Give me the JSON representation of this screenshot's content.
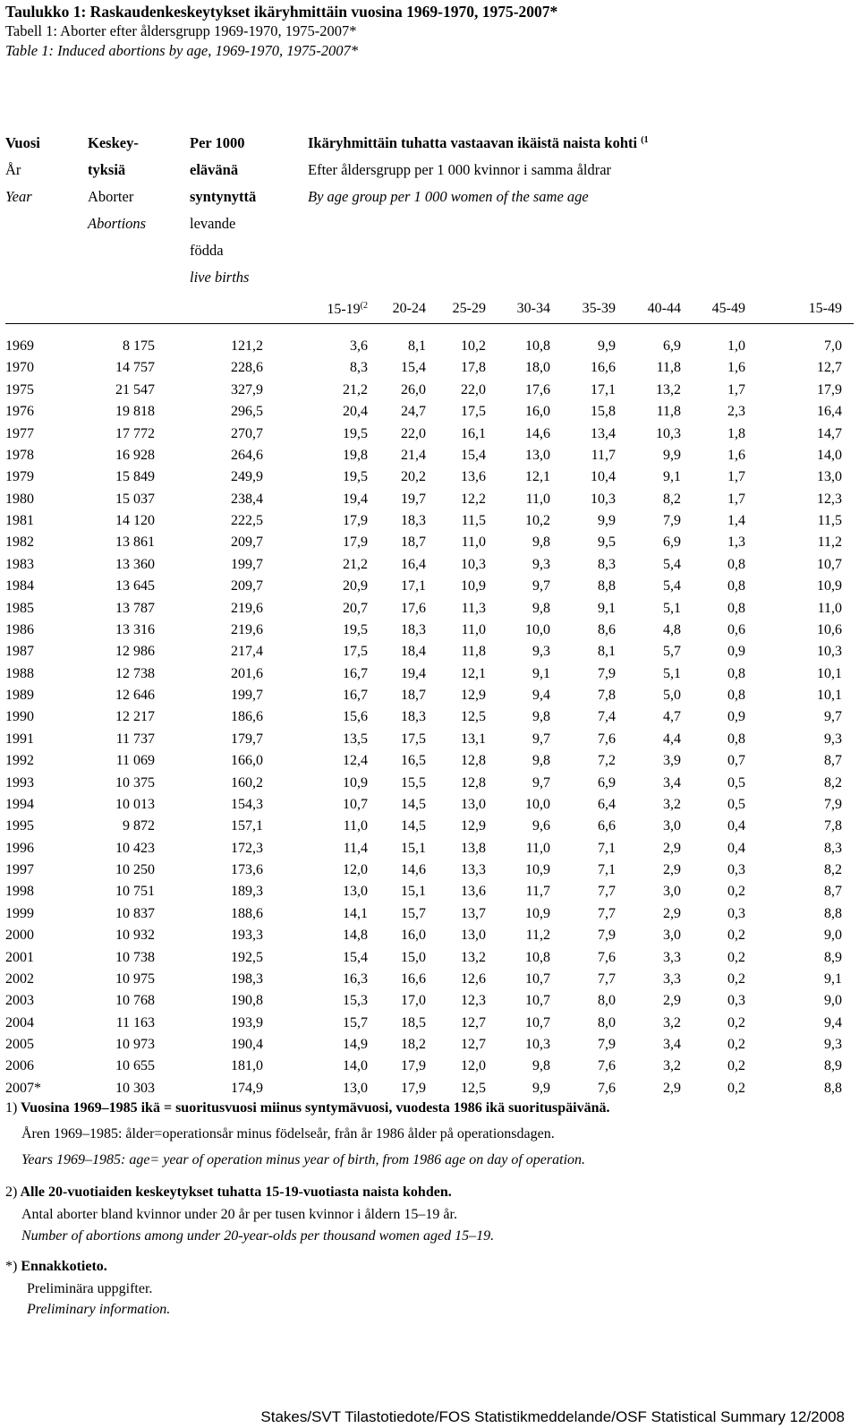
{
  "title": {
    "fi": "Taulukko 1: Raskaudenkeskeytykset ikäryhmittäin vuosina 1969-1970, 1975-2007*",
    "sv": "Tabell 1: Aborter efter åldersgrupp 1969-1970, 1975-2007*",
    "en": "Table 1: Induced abortions by age, 1969-1970, 1975-2007*"
  },
  "headers": {
    "year": {
      "fi": "Vuosi",
      "sv": "År",
      "en": "Year"
    },
    "abortions": {
      "fi": "Keskey-",
      "fi2": "tyksiä",
      "sv": "Aborter",
      "en": "Abortions"
    },
    "per1000": {
      "fi": "Per 1000",
      "fi2": "elävänä",
      "fi3": "syntynyttä",
      "sv": "levande",
      "sv2": "födda",
      "en": "live births"
    },
    "agegroups": {
      "fi": "Ikäryhmittäin tuhatta vastaavan ikäistä naista kohti",
      "fi_note": "(1",
      "sv": "Efter åldersgrupp per 1 000 kvinnor i samma åldrar",
      "en": "By age group per 1 000 women of the same age"
    },
    "ages": [
      "15-19",
      "20-24",
      "25-29",
      "30-34",
      "35-39",
      "40-44",
      "45-49",
      "15-49"
    ],
    "age_first_note": "(2"
  },
  "rows": [
    [
      "1969",
      "8 175",
      "121,2",
      "3,6",
      "8,1",
      "10,2",
      "10,8",
      "9,9",
      "6,9",
      "1,0",
      "7,0"
    ],
    [
      "1970",
      "14 757",
      "228,6",
      "8,3",
      "15,4",
      "17,8",
      "18,0",
      "16,6",
      "11,8",
      "1,6",
      "12,7"
    ],
    [
      "1975",
      "21 547",
      "327,9",
      "21,2",
      "26,0",
      "22,0",
      "17,6",
      "17,1",
      "13,2",
      "1,7",
      "17,9"
    ],
    [
      "1976",
      "19 818",
      "296,5",
      "20,4",
      "24,7",
      "17,5",
      "16,0",
      "15,8",
      "11,8",
      "2,3",
      "16,4"
    ],
    [
      "1977",
      "17 772",
      "270,7",
      "19,5",
      "22,0",
      "16,1",
      "14,6",
      "13,4",
      "10,3",
      "1,8",
      "14,7"
    ],
    [
      "1978",
      "16 928",
      "264,6",
      "19,8",
      "21,4",
      "15,4",
      "13,0",
      "11,7",
      "9,9",
      "1,6",
      "14,0"
    ],
    [
      "1979",
      "15 849",
      "249,9",
      "19,5",
      "20,2",
      "13,6",
      "12,1",
      "10,4",
      "9,1",
      "1,7",
      "13,0"
    ],
    [
      "1980",
      "15 037",
      "238,4",
      "19,4",
      "19,7",
      "12,2",
      "11,0",
      "10,3",
      "8,2",
      "1,7",
      "12,3"
    ],
    [
      "1981",
      "14 120",
      "222,5",
      "17,9",
      "18,3",
      "11,5",
      "10,2",
      "9,9",
      "7,9",
      "1,4",
      "11,5"
    ],
    [
      "1982",
      "13 861",
      "209,7",
      "17,9",
      "18,7",
      "11,0",
      "9,8",
      "9,5",
      "6,9",
      "1,3",
      "11,2"
    ],
    [
      "1983",
      "13 360",
      "199,7",
      "21,2",
      "16,4",
      "10,3",
      "9,3",
      "8,3",
      "5,4",
      "0,8",
      "10,7"
    ],
    [
      "1984",
      "13 645",
      "209,7",
      "20,9",
      "17,1",
      "10,9",
      "9,7",
      "8,8",
      "5,4",
      "0,8",
      "10,9"
    ],
    [
      "1985",
      "13 787",
      "219,6",
      "20,7",
      "17,6",
      "11,3",
      "9,8",
      "9,1",
      "5,1",
      "0,8",
      "11,0"
    ],
    [
      "1986",
      "13 316",
      "219,6",
      "19,5",
      "18,3",
      "11,0",
      "10,0",
      "8,6",
      "4,8",
      "0,6",
      "10,6"
    ],
    [
      "1987",
      "12 986",
      "217,4",
      "17,5",
      "18,4",
      "11,8",
      "9,3",
      "8,1",
      "5,7",
      "0,9",
      "10,3"
    ],
    [
      "1988",
      "12 738",
      "201,6",
      "16,7",
      "19,4",
      "12,1",
      "9,1",
      "7,9",
      "5,1",
      "0,8",
      "10,1"
    ],
    [
      "1989",
      "12 646",
      "199,7",
      "16,7",
      "18,7",
      "12,9",
      "9,4",
      "7,8",
      "5,0",
      "0,8",
      "10,1"
    ],
    [
      "1990",
      "12 217",
      "186,6",
      "15,6",
      "18,3",
      "12,5",
      "9,8",
      "7,4",
      "4,7",
      "0,9",
      "9,7"
    ],
    [
      "1991",
      "11 737",
      "179,7",
      "13,5",
      "17,5",
      "13,1",
      "9,7",
      "7,6",
      "4,4",
      "0,8",
      "9,3"
    ],
    [
      "1992",
      "11 069",
      "166,0",
      "12,4",
      "16,5",
      "12,8",
      "9,8",
      "7,2",
      "3,9",
      "0,7",
      "8,7"
    ],
    [
      "1993",
      "10 375",
      "160,2",
      "10,9",
      "15,5",
      "12,8",
      "9,7",
      "6,9",
      "3,4",
      "0,5",
      "8,2"
    ],
    [
      "1994",
      "10 013",
      "154,3",
      "10,7",
      "14,5",
      "13,0",
      "10,0",
      "6,4",
      "3,2",
      "0,5",
      "7,9"
    ],
    [
      "1995",
      "9 872",
      "157,1",
      "11,0",
      "14,5",
      "12,9",
      "9,6",
      "6,6",
      "3,0",
      "0,4",
      "7,8"
    ],
    [
      "1996",
      "10 423",
      "172,3",
      "11,4",
      "15,1",
      "13,8",
      "11,0",
      "7,1",
      "2,9",
      "0,4",
      "8,3"
    ],
    [
      "1997",
      "10 250",
      "173,6",
      "12,0",
      "14,6",
      "13,3",
      "10,9",
      "7,1",
      "2,9",
      "0,3",
      "8,2"
    ],
    [
      "1998",
      "10 751",
      "189,3",
      "13,0",
      "15,1",
      "13,6",
      "11,7",
      "7,7",
      "3,0",
      "0,2",
      "8,7"
    ],
    [
      "1999",
      "10 837",
      "188,6",
      "14,1",
      "15,7",
      "13,7",
      "10,9",
      "7,7",
      "2,9",
      "0,3",
      "8,8"
    ],
    [
      "2000",
      "10 932",
      "193,3",
      "14,8",
      "16,0",
      "13,0",
      "11,2",
      "7,9",
      "3,0",
      "0,2",
      "9,0"
    ],
    [
      "2001",
      "10 738",
      "192,5",
      "15,4",
      "15,0",
      "13,2",
      "10,8",
      "7,6",
      "3,3",
      "0,2",
      "8,9"
    ],
    [
      "2002",
      "10 975",
      "198,3",
      "16,3",
      "16,6",
      "12,6",
      "10,7",
      "7,7",
      "3,3",
      "0,2",
      "9,1"
    ],
    [
      "2003",
      "10 768",
      "190,8",
      "15,3",
      "17,0",
      "12,3",
      "10,7",
      "8,0",
      "2,9",
      "0,3",
      "9,0"
    ],
    [
      "2004",
      "11 163",
      "193,9",
      "15,7",
      "18,5",
      "12,7",
      "10,7",
      "8,0",
      "3,2",
      "0,2",
      "9,4"
    ],
    [
      "2005",
      "10 973",
      "190,4",
      "14,9",
      "18,2",
      "12,7",
      "10,3",
      "7,9",
      "3,4",
      "0,2",
      "9,3"
    ],
    [
      "2006",
      "10 655",
      "181,0",
      "14,0",
      "17,9",
      "12,0",
      "9,8",
      "7,6",
      "3,2",
      "0,2",
      "8,9"
    ],
    [
      "2007*",
      "10 303",
      "174,9",
      "13,0",
      "17,9",
      "12,5",
      "9,9",
      "7,6",
      "2,9",
      "0,2",
      "8,8"
    ]
  ],
  "notes": {
    "n1_marker": "1)",
    "n1_fi": "Vuosina 1969–1985 ikä = suoritusvuosi miinus syntymävuosi, vuodesta 1986 ikä suorituspäivänä.",
    "n1_sv": "Åren 1969–1985: ålder=operationsår minus födelseår, från år 1986 ålder på operationsdagen.",
    "n1_en": "Years 1969–1985: age= year of operation minus year of birth, from 1986 age on day of operation.",
    "n2_marker": "2)",
    "n2_fi": "Alle 20-vuotiaiden keskeytykset tuhatta 15-19-vuotiasta naista kohden.",
    "n2_sv": "Antal aborter bland kvinnor under 20 år per tusen kvinnor i åldern 15–19 år.",
    "n2_en": "Number of abortions among under 20-year-olds per thousand women aged 15–19.",
    "n3_marker": "*)",
    "n3_fi": "Ennakkotieto.",
    "n3_sv": "Preliminära uppgifter.",
    "n3_en": "Preliminary information."
  },
  "footer": "Stakes/SVT Tilastotiedote/FOS Statistikmeddelande/OSF Statistical Summary 12/2008"
}
